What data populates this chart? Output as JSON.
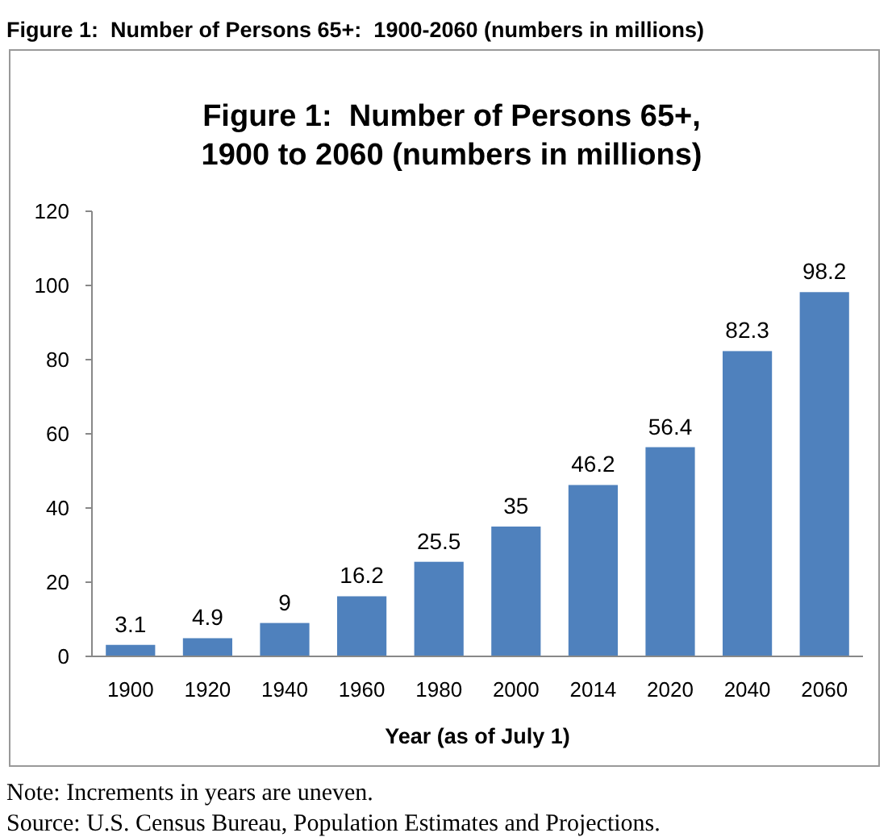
{
  "chart_data": {
    "type": "bar",
    "title": "Figure 1:  Number of Persons 65+:  1900-2060 (numbers in millions)",
    "subtitle": "Figure 1:  Number of Persons 65+, 1900 to 2060 (numbers in millions)",
    "xlabel": "Year (as of July 1)",
    "categories": [
      "1900",
      "1920",
      "1940",
      "1960",
      "1980",
      "2000",
      "2014",
      "2020",
      "2040",
      "2060"
    ],
    "values": [
      3.1,
      4.9,
      9,
      16.2,
      25.5,
      35,
      46.2,
      56.4,
      82.3,
      98.2
    ],
    "color": "#4f81bd",
    "ylim": [
      0,
      120
    ],
    "yticks": [
      0,
      20,
      40,
      60,
      80,
      100,
      120
    ],
    "data_labels": true,
    "grid": false,
    "annotations": [
      "Note: Increments in years are uneven.",
      "Source: U.S. Census Bureau, Population Estimates and Projections."
    ]
  }
}
